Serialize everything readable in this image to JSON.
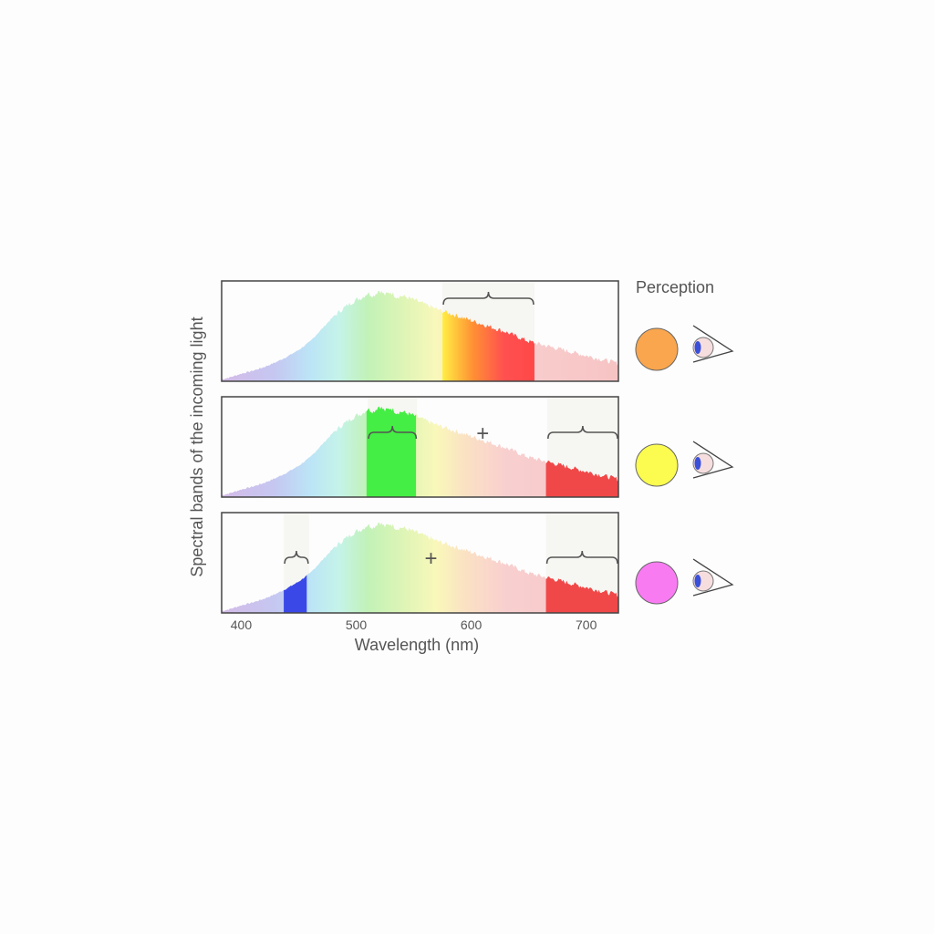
{
  "title": "",
  "y_axis_label": "Spectral  bands of the incoming  light",
  "x_axis_label": "Wavelength (nm)",
  "x_ticks": [
    "400",
    "500",
    "600",
    "700"
  ],
  "x_tick_values": [
    400,
    500,
    600,
    700
  ],
  "x_range_nm": [
    383,
    728
  ],
  "perception_label": "Perception",
  "plus_symbol": "+",
  "spectrum": {
    "wavelengths_nm": [
      383,
      390,
      400,
      410,
      420,
      430,
      440,
      450,
      460,
      470,
      480,
      490,
      500,
      505,
      510,
      515,
      520,
      525,
      530,
      535,
      540,
      550,
      560,
      570,
      580,
      590,
      600,
      610,
      620,
      630,
      640,
      650,
      660,
      670,
      680,
      690,
      700,
      710,
      720,
      728
    ],
    "relative_intensity": [
      0.02,
      0.04,
      0.08,
      0.11,
      0.15,
      0.2,
      0.26,
      0.33,
      0.42,
      0.55,
      0.68,
      0.78,
      0.86,
      0.88,
      0.93,
      0.9,
      0.96,
      0.91,
      0.94,
      0.89,
      0.9,
      0.86,
      0.81,
      0.76,
      0.72,
      0.68,
      0.64,
      0.6,
      0.56,
      0.52,
      0.47,
      0.42,
      0.39,
      0.36,
      0.33,
      0.3,
      0.27,
      0.24,
      0.21,
      0.19
    ]
  },
  "rows": [
    {
      "highlighted_bands_nm": [
        [
          575,
          655
        ]
      ],
      "band_colors": [
        "#ff5050"
      ],
      "braced_bands_nm": [
        [
          575,
          655
        ]
      ],
      "show_plus": false,
      "perceived_color": "#f9a64e"
    },
    {
      "highlighted_bands_nm": [
        [
          509,
          552
        ],
        [
          665,
          728
        ]
      ],
      "band_colors": [
        "#44ee44",
        "#f04848"
      ],
      "braced_bands_nm": [
        [
          510,
          553
        ],
        [
          666,
          728
        ]
      ],
      "show_plus": true,
      "plus_at_nm": 610,
      "perceived_color": "#fbfb50"
    },
    {
      "highlighted_bands_nm": [
        [
          437,
          457
        ],
        [
          665,
          728
        ]
      ],
      "band_colors": [
        "#3a48e8",
        "#f04848"
      ],
      "braced_bands_nm": [
        [
          437,
          459
        ],
        [
          665,
          728
        ]
      ],
      "show_plus": true,
      "plus_at_nm": 565,
      "perceived_color": "#f97bf2"
    }
  ],
  "colors": {
    "spectrum_stops": [
      {
        "nm": 383,
        "color": "#c6a4e0"
      },
      {
        "nm": 430,
        "color": "#b2b6ee"
      },
      {
        "nm": 460,
        "color": "#a6dcf4"
      },
      {
        "nm": 485,
        "color": "#b2f0e2"
      },
      {
        "nm": 510,
        "color": "#aeeea0"
      },
      {
        "nm": 540,
        "color": "#d2f29e"
      },
      {
        "nm": 570,
        "color": "#f8f6a4"
      },
      {
        "nm": 595,
        "color": "#fad8b0"
      },
      {
        "nm": 630,
        "color": "#f7c0c0"
      },
      {
        "nm": 728,
        "color": "#f5b0b0"
      }
    ],
    "row1_band_gradient": [
      "#ffee44",
      "#ff9033",
      "#ff5050",
      "#ff4848"
    ],
    "plot_border": "#444444",
    "brace_stroke": "#555555",
    "text": "#555555"
  },
  "icons": [
    "eye-icon",
    "perceived-color-swatch"
  ]
}
